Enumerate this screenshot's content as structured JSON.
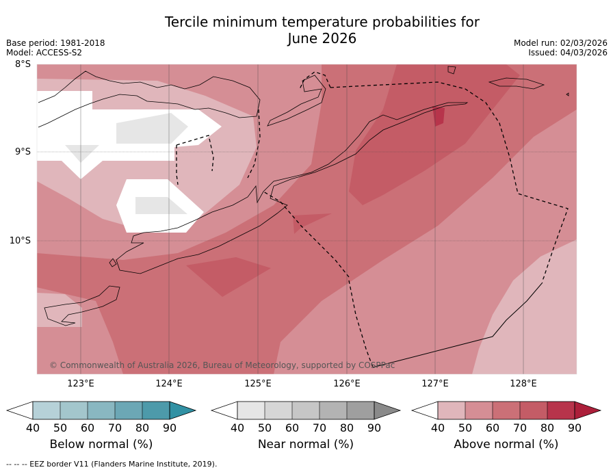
{
  "header": {
    "title_line1": "Tercile minimum temperature probabilities for",
    "title_line2": "June 2026",
    "base_period": "Base period: 1981-2018",
    "model": "Model: ACCESS-S2",
    "model_run": "Model run: 02/03/2026",
    "issued": "Issued: 04/03/2026"
  },
  "map": {
    "lat_labels": [
      "8°S",
      "9°S",
      "10°S"
    ],
    "lon_labels": [
      "123°E",
      "124°E",
      "125°E",
      "126°E",
      "127°E",
      "128°E"
    ],
    "copyright": "© Commonwealth of Australia 2026, Bureau of Meteorology, supported by COSPPac"
  },
  "colorbars": {
    "below": {
      "label": "Below normal (%)",
      "ticks": [
        "40",
        "50",
        "60",
        "70",
        "80",
        "90"
      ],
      "colors": [
        "#b6d1d8",
        "#a3c6cc",
        "#89b7c1",
        "#6ca7b5",
        "#4d9aaa",
        "#3191a4"
      ]
    },
    "near": {
      "label": "Near normal (%)",
      "ticks": [
        "40",
        "50",
        "60",
        "70",
        "80",
        "90"
      ],
      "colors": [
        "#e6e6e6",
        "#d6d6d6",
        "#c6c6c6",
        "#b3b3b3",
        "#9f9f9f",
        "#8a8a8a"
      ]
    },
    "above": {
      "label": "Above normal (%)",
      "ticks": [
        "40",
        "50",
        "60",
        "70",
        "80",
        "90"
      ],
      "colors": [
        "#e0b6bb",
        "#d58e95",
        "#cb7077",
        "#c45c66",
        "#b7344b",
        "#ac1f3a"
      ]
    }
  },
  "footer": "--  --  -- EEZ border V11 (Flanders Marine Institute, 2019)."
}
